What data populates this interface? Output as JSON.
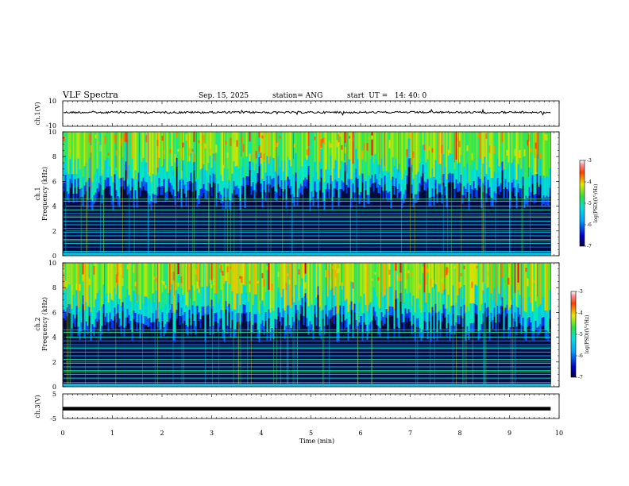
{
  "header": {
    "title": "VLF Spectra",
    "date": "Sep. 15, 2025",
    "station": "station= ANG",
    "start": "start  UT =   14: 40: 0"
  },
  "chart_data": [
    {
      "type": "line",
      "name": "ch1-waveform",
      "ylabel": "ch.1(V)",
      "ylim": [
        -10,
        10
      ],
      "ytick_labels": [
        "10",
        "-10"
      ],
      "baseline_value": 0
    },
    {
      "type": "heatmap",
      "name": "ch1-spectrogram",
      "ylabel": "Frequency (kHz)",
      "ylabel_channel": "ch.1",
      "ylim": [
        0,
        10
      ],
      "yticks": [
        0,
        2,
        4,
        6,
        8,
        10
      ],
      "colorbar": {
        "label": "log(PSD)(V²/Hz)",
        "range": [
          -7,
          -3
        ],
        "ticks": [
          "-3",
          "-4",
          "-5",
          "-6",
          "-7"
        ]
      }
    },
    {
      "type": "heatmap",
      "name": "ch2-spectrogram",
      "ylabel": "Frequency (kHz)",
      "ylabel_channel": "ch.2",
      "ylim": [
        0,
        10
      ],
      "yticks": [
        0,
        2,
        4,
        6,
        8,
        10
      ],
      "colorbar": {
        "label": "log(PSD)(V²/Hz)",
        "range": [
          -7,
          -3
        ],
        "ticks": [
          "-3",
          "-4",
          "-5",
          "-6",
          "-7"
        ]
      }
    },
    {
      "type": "line",
      "name": "ch3-signal",
      "ylabel": "ch.3(V)",
      "ylim": [
        -5,
        5
      ],
      "ytick_labels": [
        "5",
        "-5"
      ],
      "constant_value": -1.0
    }
  ],
  "xaxis": {
    "label": "Time (min)",
    "xlim": [
      0,
      10
    ],
    "ticks": [
      "0",
      "1",
      "2",
      "3",
      "4",
      "5",
      "6",
      "7",
      "8",
      "9",
      "10"
    ],
    "data_end": 9.83
  }
}
